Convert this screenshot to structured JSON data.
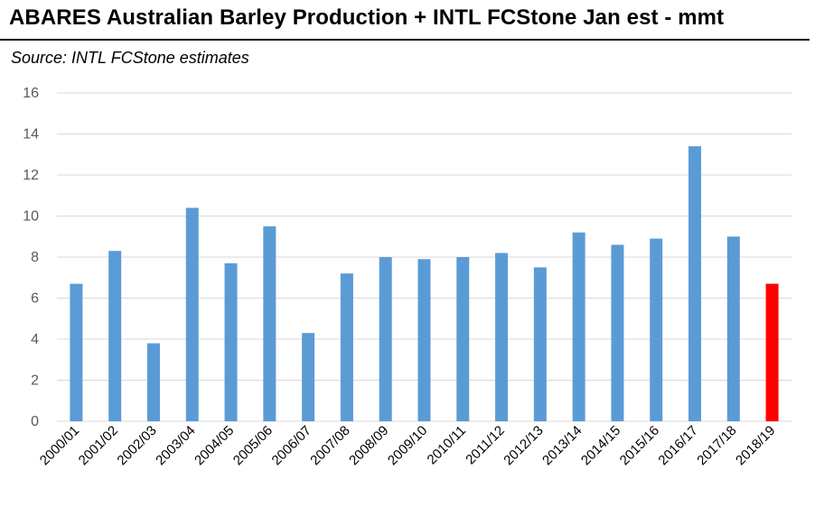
{
  "header": {
    "title": "ABARES Australian Barley Production + INTL FCStone Jan est - mmt",
    "subtitle": "Source: INTL FCStone estimates"
  },
  "chart_data": {
    "type": "bar",
    "title": "ABARES Australian Barley Production + INTL FCStone Jan est - mmt",
    "subtitle": "Source: INTL FCStone estimates",
    "xlabel": "",
    "ylabel": "",
    "ylim": [
      0,
      16
    ],
    "yticks": [
      0,
      2,
      4,
      6,
      8,
      10,
      12,
      14,
      16
    ],
    "grid": true,
    "categories": [
      "2000/01",
      "2001/02",
      "2002/03",
      "2003/04",
      "2004/05",
      "2005/06",
      "2006/07",
      "2007/08",
      "2008/09",
      "2009/10",
      "2010/11",
      "2011/12",
      "2012/13",
      "2013/14",
      "2014/15",
      "2015/16",
      "2016/17",
      "2017/18",
      "2018/19"
    ],
    "values": [
      6.7,
      8.3,
      3.8,
      10.4,
      7.7,
      9.5,
      4.3,
      7.2,
      8.0,
      7.9,
      8.0,
      8.2,
      7.5,
      9.2,
      8.6,
      8.9,
      13.4,
      9.0,
      6.7
    ],
    "colors": {
      "default": "#5b9bd5",
      "highlight": "#ff0000",
      "grid": "#d9d9d9",
      "axis": "#d9d9d9"
    },
    "highlight_index": 18
  }
}
